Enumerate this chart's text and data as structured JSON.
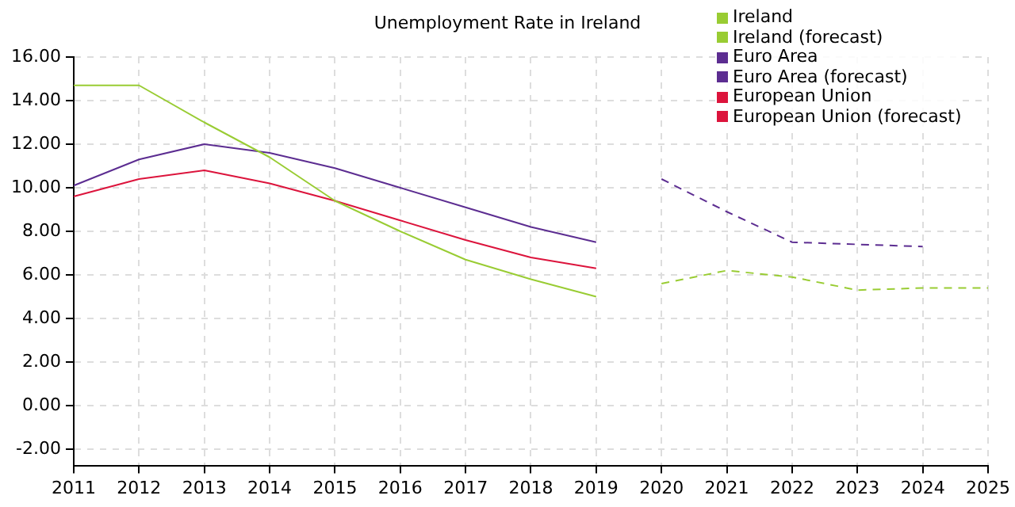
{
  "chart_data": {
    "type": "line",
    "title": "Unemployment Rate in Ireland",
    "xlim": [
      2011,
      2025
    ],
    "xticks": [
      2011,
      2012,
      2013,
      2014,
      2015,
      2016,
      2017,
      2018,
      2019,
      2020,
      2021,
      2022,
      2023,
      2024,
      2025
    ],
    "ylim": [
      -2.75,
      16
    ],
    "yticks": [
      {
        "value": -2,
        "label": "-2.00"
      },
      {
        "value": 0,
        "label": "0.00"
      },
      {
        "value": 2,
        "label": "2.00"
      },
      {
        "value": 4,
        "label": "4.00"
      },
      {
        "value": 6,
        "label": "6.00"
      },
      {
        "value": 8,
        "label": "8.00"
      },
      {
        "value": 10,
        "label": "10.00"
      },
      {
        "value": 12,
        "label": "12.00"
      },
      {
        "value": 14,
        "label": "14.00"
      },
      {
        "value": 16,
        "label": "16.00"
      }
    ],
    "grid": true,
    "legend": "top right",
    "marker": "none",
    "series": [
      {
        "name": "Ireland",
        "color": "#99cc33",
        "line_style": "solid",
        "x": [
          2011,
          2012,
          2013,
          2014,
          2015,
          2016,
          2017,
          2018,
          2019
        ],
        "values": [
          14.7,
          14.7,
          13.0,
          11.4,
          9.4,
          8.0,
          6.7,
          5.8,
          5.0
        ]
      },
      {
        "name": "Ireland (forecast)",
        "color": "#99cc33",
        "line_style": "dashed",
        "x": [
          2020,
          2021,
          2022,
          2023,
          2024,
          2025
        ],
        "values": [
          5.6,
          6.2,
          5.9,
          5.3,
          5.4,
          5.4
        ]
      },
      {
        "name": "Euro Area",
        "color": "#5c2d91",
        "line_style": "solid",
        "x": [
          2011,
          2012,
          2013,
          2014,
          2015,
          2016,
          2017,
          2018,
          2019
        ],
        "values": [
          10.1,
          11.3,
          12.0,
          11.6,
          10.9,
          10.0,
          9.1,
          8.2,
          7.5
        ]
      },
      {
        "name": "Euro Area (forecast)",
        "color": "#5c2d91",
        "line_style": "dashed",
        "x": [
          2020,
          2021,
          2022,
          2023,
          2024
        ],
        "values": [
          10.4,
          8.9,
          7.5,
          7.4,
          7.3
        ]
      },
      {
        "name": "European Union",
        "color": "#dc143c",
        "line_style": "solid",
        "x": [
          2011,
          2012,
          2013,
          2014,
          2015,
          2016,
          2017,
          2018,
          2019
        ],
        "values": [
          9.6,
          10.4,
          10.8,
          10.2,
          9.4,
          8.5,
          7.6,
          6.8,
          6.3
        ]
      },
      {
        "name": "European Union (forecast)",
        "color": "#dc143c",
        "line_style": "dashed"
      }
    ]
  }
}
